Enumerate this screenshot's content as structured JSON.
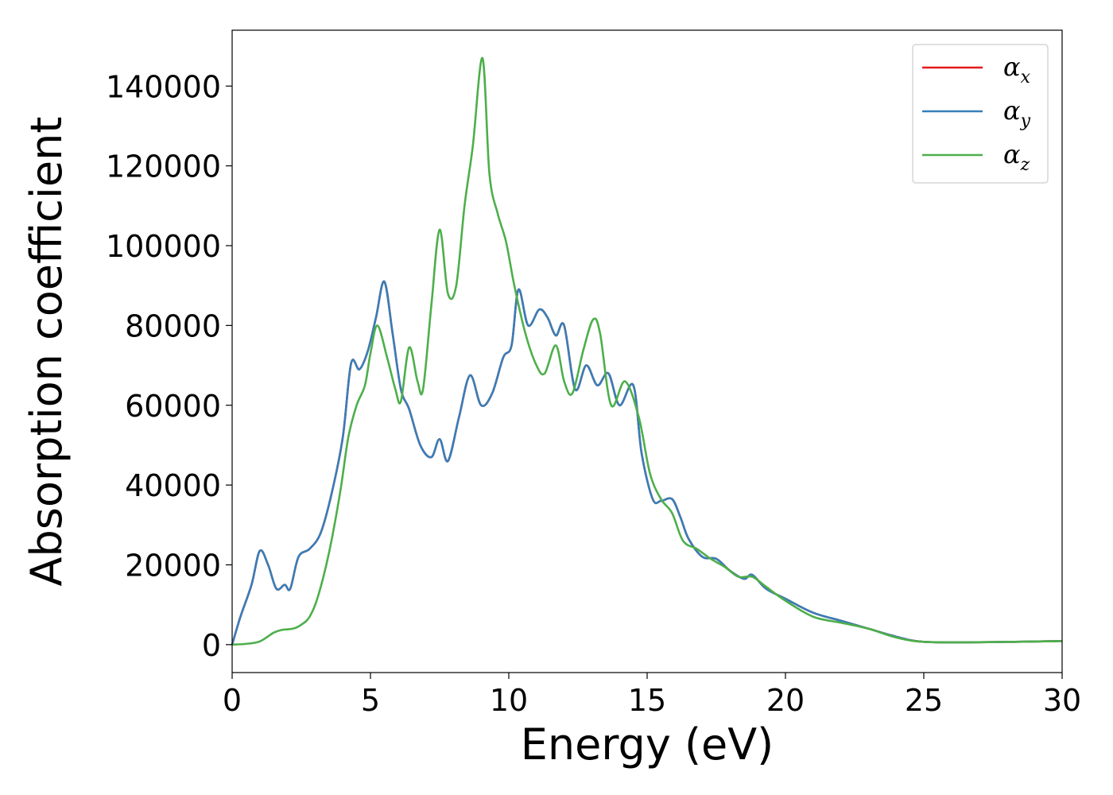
{
  "chart_data": {
    "type": "line",
    "xlabel": "Energy (eV)",
    "ylabel": "Absorption coefficient",
    "xlim": [
      0,
      30
    ],
    "ylim": [
      -7000,
      154000
    ],
    "xticks": [
      0,
      5,
      10,
      15,
      20,
      25,
      30
    ],
    "yticks": [
      0,
      20000,
      40000,
      60000,
      80000,
      100000,
      120000,
      140000
    ],
    "grid": false,
    "legend_position": "top-right",
    "series": [
      {
        "name": "αx",
        "symbol": "α",
        "subscript": "x",
        "color": "#e41a1c",
        "x": [
          0,
          0.3,
          0.7,
          1.0,
          1.3,
          1.6,
          1.9,
          2.1,
          2.4,
          2.8,
          3.2,
          3.6,
          4.0,
          4.3,
          4.6,
          4.9,
          5.2,
          5.5,
          5.8,
          6.1,
          6.4,
          6.8,
          7.2,
          7.5,
          7.8,
          8.2,
          8.6,
          9.0,
          9.4,
          9.8,
          10.1,
          10.35,
          10.7,
          11.1,
          11.4,
          11.7,
          12.0,
          12.4,
          12.8,
          13.2,
          13.6,
          14.0,
          14.5,
          14.8,
          15.2,
          15.5,
          15.9,
          16.2,
          16.5,
          17.0,
          17.5,
          18.0,
          18.5,
          18.8,
          19.3,
          20.0,
          21.0,
          22.0,
          23.0,
          24.0,
          25.0,
          27.0,
          30.0
        ],
        "y": [
          0,
          7000,
          15000,
          23500,
          20000,
          14000,
          15000,
          14000,
          22000,
          24000,
          28000,
          38000,
          52000,
          70500,
          69000,
          73500,
          82000,
          91000,
          78000,
          64000,
          59000,
          50000,
          47000,
          51500,
          46000,
          57000,
          67500,
          60000,
          63000,
          72000,
          75000,
          89000,
          80000,
          84000,
          82000,
          77500,
          80000,
          64000,
          70000,
          65000,
          68000,
          60000,
          65000,
          48000,
          36500,
          36000,
          36500,
          32000,
          26500,
          22000,
          21500,
          18500,
          16500,
          17500,
          14000,
          11500,
          8000,
          6000,
          4000,
          2000,
          700,
          600,
          900
        ]
      },
      {
        "name": "αy",
        "symbol": "α",
        "subscript": "y",
        "color": "#377eb8",
        "x": [
          0,
          0.3,
          0.7,
          1.0,
          1.3,
          1.6,
          1.9,
          2.1,
          2.4,
          2.8,
          3.2,
          3.6,
          4.0,
          4.3,
          4.6,
          4.9,
          5.2,
          5.5,
          5.8,
          6.1,
          6.4,
          6.8,
          7.2,
          7.5,
          7.8,
          8.2,
          8.6,
          9.0,
          9.4,
          9.8,
          10.1,
          10.35,
          10.7,
          11.1,
          11.4,
          11.7,
          12.0,
          12.4,
          12.8,
          13.2,
          13.6,
          14.0,
          14.5,
          14.8,
          15.2,
          15.5,
          15.9,
          16.2,
          16.5,
          17.0,
          17.5,
          18.0,
          18.5,
          18.8,
          19.3,
          20.0,
          21.0,
          22.0,
          23.0,
          24.0,
          25.0,
          27.0,
          30.0
        ],
        "y": [
          0,
          7000,
          15000,
          23500,
          20000,
          14000,
          15000,
          14000,
          22000,
          24000,
          28000,
          38000,
          52000,
          70500,
          69000,
          73500,
          82000,
          91000,
          78000,
          64000,
          59000,
          50000,
          47000,
          51500,
          46000,
          57000,
          67500,
          60000,
          63000,
          72000,
          75000,
          89000,
          80000,
          84000,
          82000,
          77500,
          80000,
          64000,
          70000,
          65000,
          68000,
          60000,
          65000,
          48000,
          36500,
          36000,
          36500,
          32000,
          26500,
          22000,
          21500,
          18500,
          16500,
          17500,
          14000,
          11500,
          8000,
          6000,
          4000,
          2000,
          700,
          600,
          900
        ]
      },
      {
        "name": "αz",
        "symbol": "α",
        "subscript": "z",
        "color": "#4daf4a",
        "x": [
          0,
          0.5,
          1.0,
          1.5,
          1.8,
          2.2,
          2.5,
          2.8,
          3.1,
          3.5,
          3.9,
          4.2,
          4.5,
          4.8,
          5.0,
          5.25,
          5.6,
          5.9,
          6.1,
          6.4,
          6.7,
          6.9,
          7.2,
          7.5,
          7.8,
          8.1,
          8.4,
          8.7,
          9.05,
          9.3,
          9.6,
          9.9,
          10.2,
          10.6,
          11.0,
          11.3,
          11.7,
          12.0,
          12.3,
          12.7,
          13.05,
          13.3,
          13.7,
          14.2,
          14.7,
          15.1,
          15.5,
          15.9,
          16.3,
          16.8,
          17.3,
          17.8,
          18.3,
          18.8,
          19.3,
          20.0,
          21.0,
          22.0,
          23.0,
          24.0,
          25.0,
          27.0,
          30.0
        ],
        "y": [
          0,
          200,
          800,
          3000,
          3700,
          4000,
          5000,
          7000,
          12000,
          23000,
          38000,
          52000,
          60000,
          65000,
          73000,
          80000,
          72000,
          64000,
          61000,
          74500,
          66000,
          64000,
          85000,
          104000,
          88000,
          90000,
          110000,
          125000,
          147000,
          118000,
          108000,
          101000,
          90000,
          78000,
          70000,
          68000,
          75000,
          66000,
          63000,
          74000,
          81500,
          78000,
          60000,
          66000,
          57000,
          43000,
          36500,
          33000,
          26000,
          24000,
          21500,
          19500,
          17000,
          17000,
          14500,
          11000,
          7000,
          5500,
          4000,
          1800,
          700,
          600,
          900
        ]
      }
    ]
  }
}
